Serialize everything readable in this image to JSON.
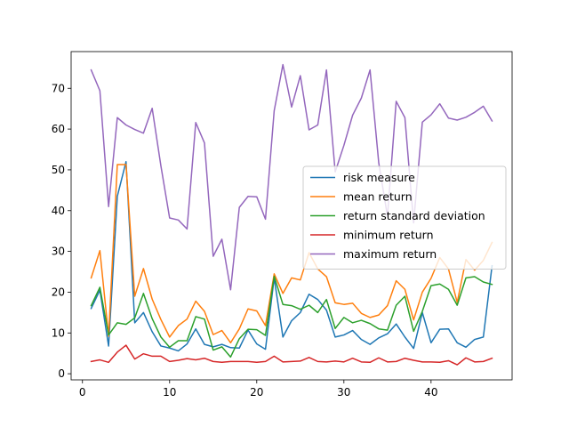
{
  "chart_data": {
    "type": "line",
    "title": "",
    "xlabel": "",
    "ylabel": "",
    "xlim": [
      -1.3,
      49.3
    ],
    "ylim": [
      -1.5,
      79.0
    ],
    "xticks": [
      0,
      10,
      20,
      30,
      40
    ],
    "yticks": [
      0,
      10,
      20,
      30,
      40,
      50,
      60,
      70
    ],
    "grid": false,
    "legend_position": "center-right",
    "x": [
      1,
      2,
      3,
      4,
      5,
      6,
      7,
      8,
      9,
      10,
      11,
      12,
      13,
      14,
      15,
      16,
      17,
      18,
      19,
      20,
      21,
      22,
      23,
      24,
      25,
      26,
      27,
      28,
      29,
      30,
      31,
      32,
      33,
      34,
      35,
      36,
      37,
      38,
      39,
      40,
      41,
      42,
      43,
      44,
      45,
      46,
      47
    ],
    "series": [
      {
        "name": "risk measure",
        "color": "#1f77b4",
        "values": [
          16.0,
          20.5,
          6.8,
          43.5,
          52.0,
          12.5,
          15.0,
          10.3,
          6.8,
          6.3,
          5.6,
          7.3,
          11.0,
          7.2,
          6.6,
          7.2,
          6.4,
          6.3,
          10.7,
          7.3,
          6.0,
          23.5,
          9.0,
          13.0,
          15.0,
          19.5,
          18.2,
          15.6,
          9.0,
          9.5,
          10.6,
          8.4,
          7.2,
          8.8,
          9.8,
          12.2,
          9.0,
          6.2,
          15.0,
          7.6,
          10.9,
          11.0,
          7.6,
          6.5,
          8.4,
          9.0,
          26.5
        ]
      },
      {
        "name": "mean return",
        "color": "#ff7f0e",
        "values": [
          23.5,
          30.2,
          9.2,
          51.3,
          51.3,
          19.0,
          25.8,
          18.3,
          13.3,
          9.0,
          11.8,
          13.4,
          17.8,
          15.3,
          9.6,
          10.6,
          7.6,
          11.0,
          15.9,
          15.4,
          11.8,
          24.5,
          19.7,
          23.5,
          23.0,
          29.7,
          25.7,
          23.8,
          17.4,
          17.0,
          17.3,
          14.8,
          13.8,
          14.4,
          16.7,
          22.8,
          20.7,
          13.2,
          20.0,
          23.4,
          28.5,
          25.7,
          17.5,
          28.0,
          25.4,
          27.8,
          32.2
        ]
      },
      {
        "name": "return standard deviation",
        "color": "#2ca02c",
        "values": [
          16.7,
          21.2,
          9.5,
          12.5,
          12.1,
          13.7,
          19.7,
          13.5,
          9.0,
          6.5,
          8.1,
          8.1,
          14.0,
          13.4,
          5.8,
          6.6,
          4.1,
          8.6,
          10.9,
          10.8,
          9.4,
          23.9,
          17.0,
          16.7,
          15.8,
          16.8,
          15.0,
          18.2,
          11.1,
          13.8,
          12.5,
          13.1,
          12.3,
          11.0,
          10.7,
          16.8,
          19.0,
          10.4,
          15.3,
          21.6,
          22.0,
          20.7,
          16.8,
          23.5,
          23.8,
          22.5,
          21.9
        ]
      },
      {
        "name": "minimum return",
        "color": "#d62728",
        "values": [
          3.0,
          3.4,
          2.8,
          5.3,
          7.0,
          3.6,
          4.9,
          4.3,
          4.3,
          3.0,
          3.3,
          3.7,
          3.4,
          3.8,
          3.0,
          2.8,
          3.0,
          3.0,
          3.0,
          2.8,
          3.0,
          4.3,
          2.9,
          3.0,
          3.1,
          4.0,
          3.0,
          2.9,
          3.1,
          2.9,
          3.8,
          2.9,
          2.8,
          3.9,
          2.9,
          3.0,
          3.8,
          3.3,
          2.9,
          2.9,
          2.8,
          3.2,
          2.2,
          3.9,
          2.9,
          3.0,
          3.8
        ]
      },
      {
        "name": "maximum return",
        "color": "#9467bd",
        "values": [
          74.5,
          69.4,
          41.0,
          62.8,
          61.0,
          59.9,
          59.0,
          65.1,
          51.0,
          38.2,
          37.7,
          35.5,
          61.6,
          56.6,
          28.8,
          33.0,
          20.6,
          40.8,
          43.5,
          43.4,
          37.9,
          64.5,
          75.8,
          65.4,
          73.1,
          59.8,
          61.0,
          74.5,
          49.5,
          56.0,
          63.4,
          67.6,
          74.5,
          51.7,
          38.6,
          66.8,
          62.8,
          37.0,
          61.7,
          63.5,
          66.2,
          62.7,
          62.2,
          62.9,
          64.1,
          65.6,
          62.0
        ]
      }
    ]
  }
}
